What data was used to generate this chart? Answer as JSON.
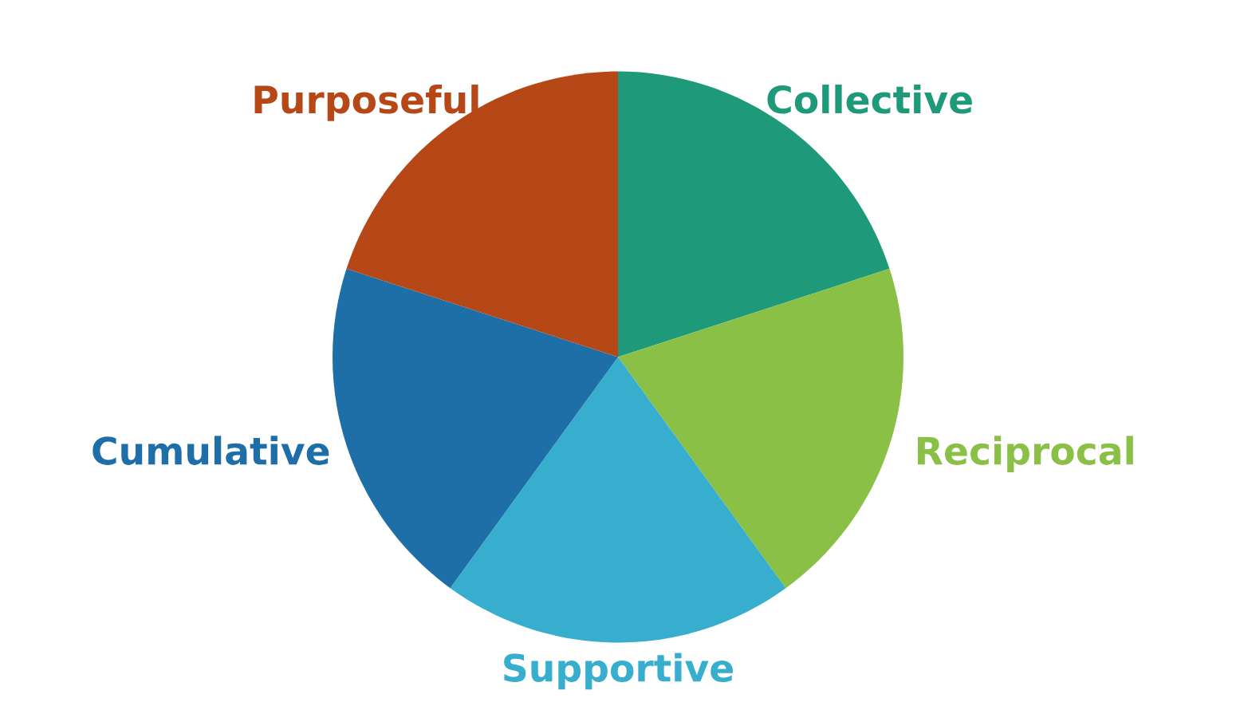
{
  "chart_data": {
    "type": "pie",
    "categories": [
      "Collective",
      "Reciprocal",
      "Supportive",
      "Cumulative",
      "Purposeful"
    ],
    "values": [
      20,
      20,
      20,
      20,
      20
    ],
    "colors": [
      "#1e9a7a",
      "#8bc047",
      "#37aecd",
      "#1e6ea8",
      "#b64818"
    ]
  }
}
